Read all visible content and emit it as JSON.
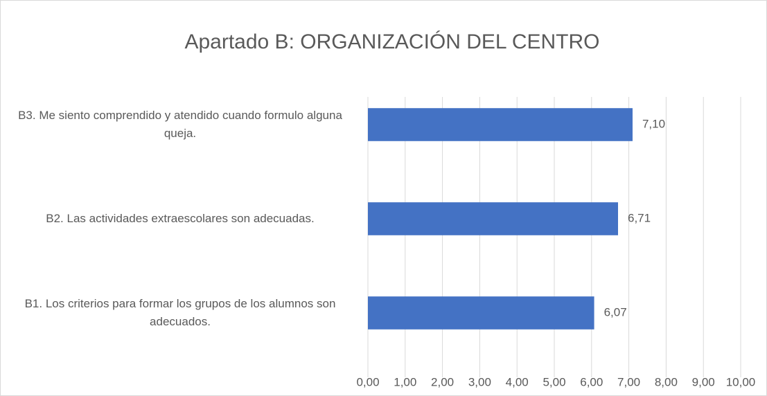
{
  "chart_data": {
    "type": "bar",
    "orientation": "horizontal",
    "title": "Apartado B: ORGANIZACIÓN DEL CENTRO",
    "categories": [
      "B1. Los criterios para formar los grupos de los alumnos son adecuados.",
      "B2. Las actividades extraescolares son adecuadas.",
      "B3. Me siento comprendido y atendido cuando formulo alguna queja."
    ],
    "values": [
      6.07,
      6.71,
      7.1
    ],
    "value_labels": [
      "6,07",
      "6,71",
      "7,10"
    ],
    "color": "#4472c4",
    "xlim": [
      0,
      10
    ],
    "xticks": [
      {
        "value": 0,
        "label": "0,00"
      },
      {
        "value": 1,
        "label": "1,00"
      },
      {
        "value": 2,
        "label": "2,00"
      },
      {
        "value": 3,
        "label": "3,00"
      },
      {
        "value": 4,
        "label": "4,00"
      },
      {
        "value": 5,
        "label": "5,00"
      },
      {
        "value": 6,
        "label": "6,00"
      },
      {
        "value": 7,
        "label": "7,00"
      },
      {
        "value": 8,
        "label": "8,00"
      },
      {
        "value": 9,
        "label": "9,00"
      },
      {
        "value": 10,
        "label": "10,00"
      }
    ],
    "grid": true
  }
}
